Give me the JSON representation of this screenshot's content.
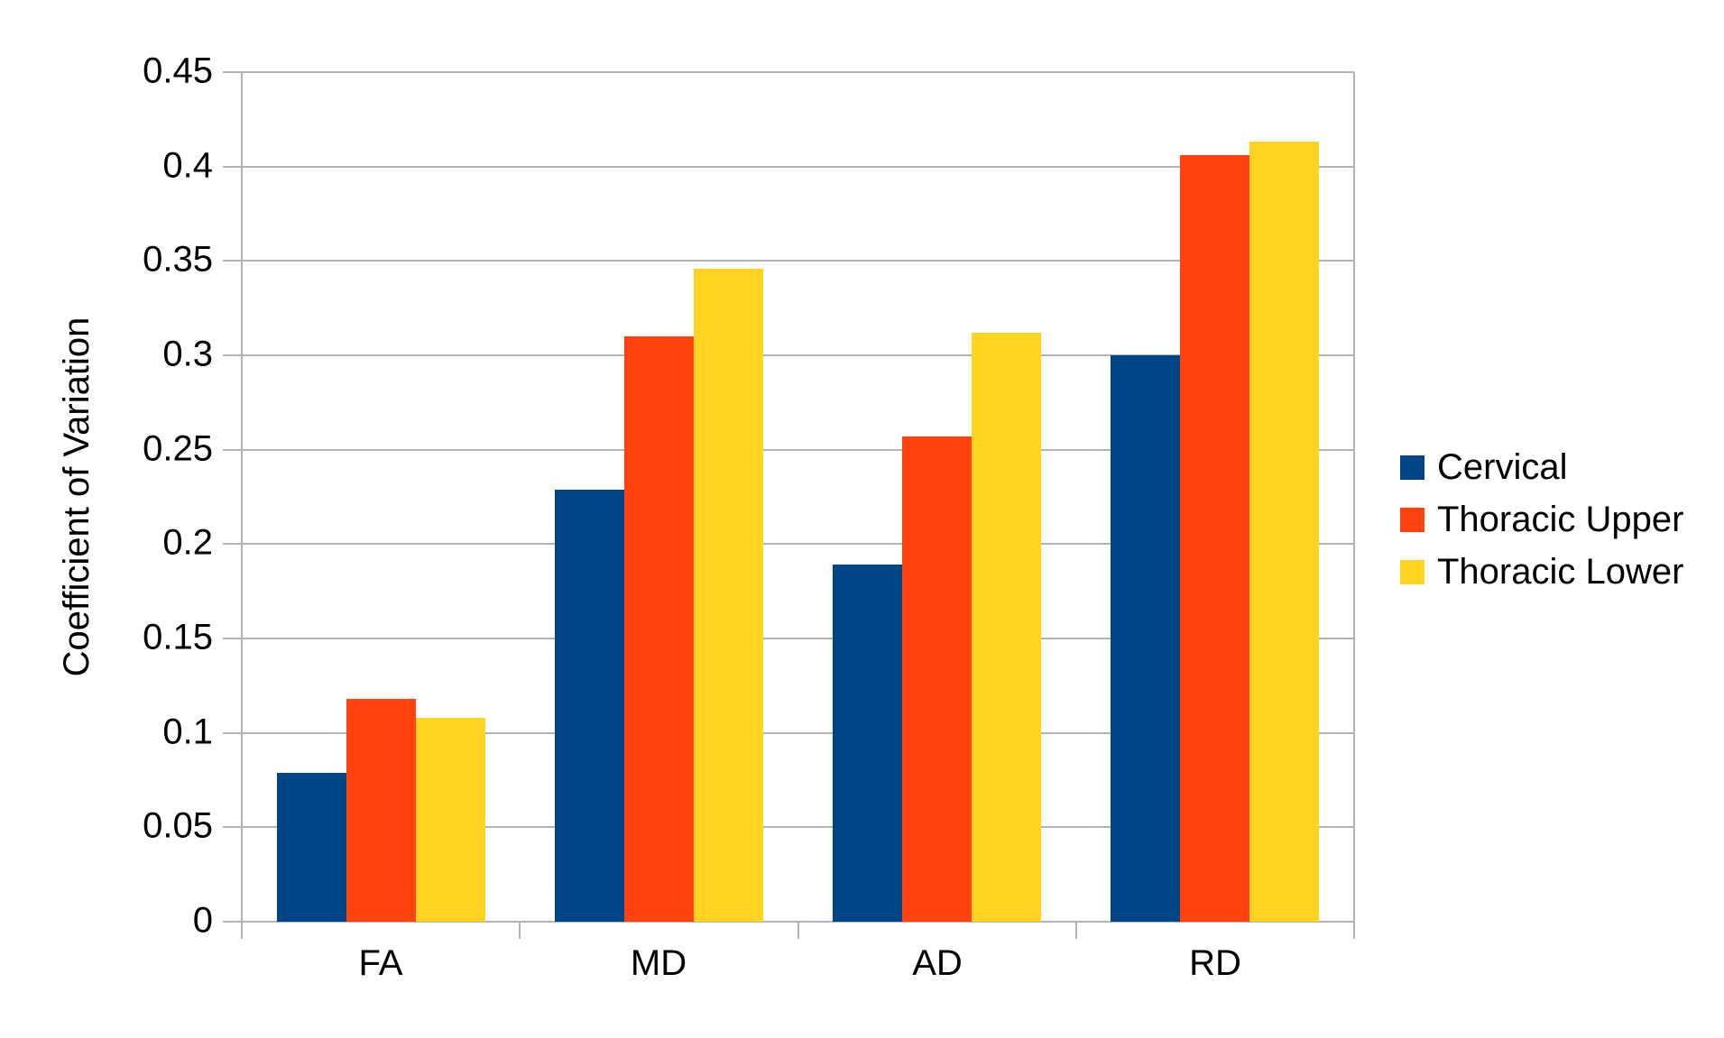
{
  "chart_data": {
    "type": "bar",
    "title": "",
    "xlabel": "",
    "ylabel": "Coefficient of Variation",
    "categories": [
      "FA",
      "MD",
      "AD",
      "RD"
    ],
    "series": [
      {
        "name": "Cervical",
        "color": "#004586",
        "values": [
          0.079,
          0.229,
          0.189,
          0.3
        ]
      },
      {
        "name": "Thoracic Upper",
        "color": "#FF420E",
        "values": [
          0.118,
          0.31,
          0.257,
          0.406
        ]
      },
      {
        "name": "Thoracic Lower",
        "color": "#FFD320",
        "values": [
          0.108,
          0.346,
          0.312,
          0.413
        ]
      }
    ],
    "ylim": [
      0,
      0.45
    ],
    "ytick_step": 0.05,
    "ytick_labels": [
      "0",
      "0.05",
      "0.1",
      "0.15",
      "0.2",
      "0.25",
      "0.3",
      "0.35",
      "0.4",
      "0.45"
    ],
    "grid": true,
    "grid_color": "#b3b3b3",
    "text_color": "#000000",
    "background_color": "#ffffff",
    "legend_position": "right"
  }
}
